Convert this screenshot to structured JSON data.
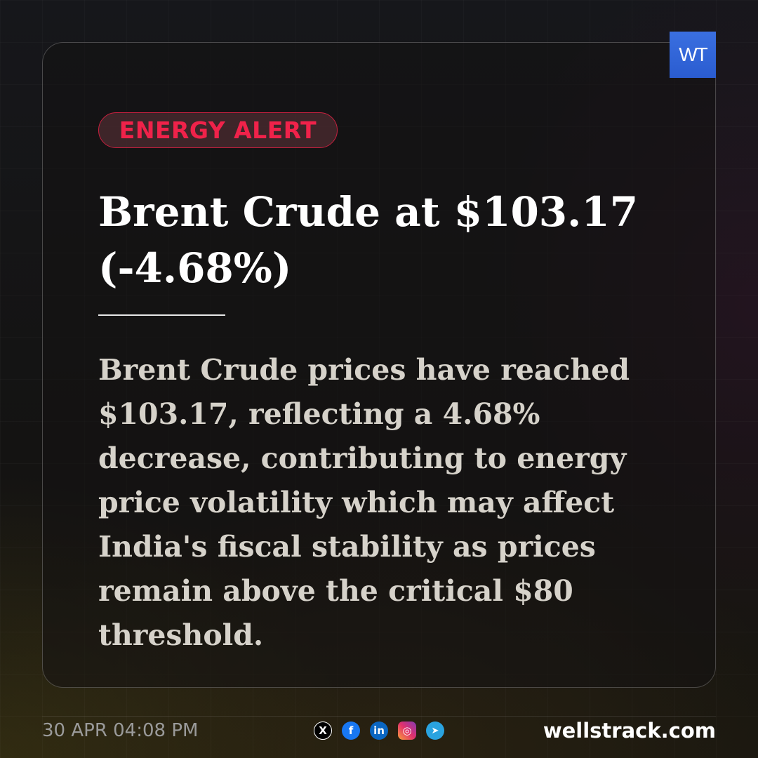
{
  "brand": {
    "logo_text": "WT",
    "site": "wellstrack.com"
  },
  "badge": "ENERGY ALERT",
  "headline": "Brent Crude at $103.17 (-4.68%)",
  "body": "Brent Crude prices have reached $103.17, reflecting a 4.68% decrease, contributing to energy price volatility which may affect India's fiscal stability as prices remain above the critical $80 threshold.",
  "footer": {
    "timestamp": "30 APR 04:08 PM",
    "socials": [
      {
        "icon": "x-icon",
        "glyph": "X",
        "color": "#000000"
      },
      {
        "icon": "facebook-icon",
        "glyph": "f",
        "color": "#1877f2"
      },
      {
        "icon": "linkedin-icon",
        "glyph": "in",
        "color": "#0a66c2"
      },
      {
        "icon": "instagram-icon",
        "glyph": "◎",
        "color": "#e1306c"
      },
      {
        "icon": "telegram-icon",
        "glyph": "➤",
        "color": "#2aa3e0"
      }
    ]
  },
  "colors": {
    "accent": "#f0224a",
    "logo_bg": "#2f63d8"
  }
}
